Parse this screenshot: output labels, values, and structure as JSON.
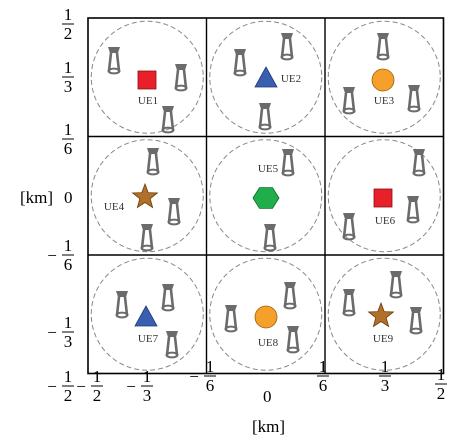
{
  "figure": {
    "x_unit_label": "[km]",
    "y_unit_label": "[km]",
    "y_zero_label": "0",
    "x_zero_label": "0",
    "y_ticks": [
      {
        "sign": "",
        "num": "1",
        "den": "2"
      },
      {
        "sign": "",
        "num": "1",
        "den": "3"
      },
      {
        "sign": "",
        "num": "1",
        "den": "6"
      },
      {
        "sign": "−",
        "num": "1",
        "den": "6"
      },
      {
        "sign": "−",
        "num": "1",
        "den": "3"
      },
      {
        "sign": "−",
        "num": "1",
        "den": "2"
      }
    ],
    "x_ticks": [
      {
        "sign": "−",
        "num": "1",
        "den": "2"
      },
      {
        "sign": "−",
        "num": "1",
        "den": "3"
      },
      {
        "sign": "−",
        "num": "1",
        "den": "6"
      },
      {
        "sign": "",
        "num": "1",
        "den": "6"
      },
      {
        "sign": "",
        "num": "1",
        "den": "3"
      },
      {
        "sign": "",
        "num": "1",
        "den": "2"
      }
    ],
    "colors": {
      "grid_line": "#000000",
      "coverage_circle": "#888888",
      "antenna": "#6b6b6b",
      "red_square": "#e8202a",
      "blue_triangle": "#3a5fb0",
      "orange_circle": "#f5a02a",
      "green_hexagon": "#1fae4a",
      "brown_star": "#b0702a"
    },
    "users": [
      {
        "label": "UE1",
        "shape": "square",
        "color": "red_square"
      },
      {
        "label": "UE2",
        "shape": "triangle",
        "color": "blue_triangle"
      },
      {
        "label": "UE3",
        "shape": "circle",
        "color": "orange_circle"
      },
      {
        "label": "UE4",
        "shape": "star",
        "color": "brown_star"
      },
      {
        "label": "UE5",
        "shape": "hexagon",
        "color": "green_hexagon"
      },
      {
        "label": "UE6",
        "shape": "square",
        "color": "red_square"
      },
      {
        "label": "UE7",
        "shape": "triangle",
        "color": "blue_triangle"
      },
      {
        "label": "UE8",
        "shape": "circle",
        "color": "orange_circle"
      },
      {
        "label": "UE9",
        "shape": "star",
        "color": "brown_star"
      }
    ]
  }
}
